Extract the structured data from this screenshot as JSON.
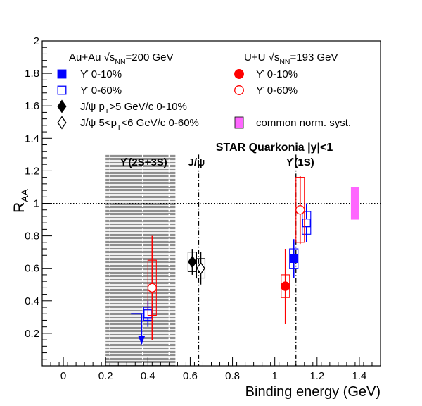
{
  "chart_data": {
    "type": "scatter",
    "title": "STAR Quarkonia |y|<1",
    "xlabel": "Binding energy (GeV)",
    "ylabel": "R",
    "ylabel_sub": "AA",
    "xlim": [
      -0.1,
      1.5
    ],
    "ylim": [
      0,
      2
    ],
    "x_ticks": [
      0,
      0.2,
      0.4,
      0.6,
      0.8,
      1,
      1.2,
      1.4
    ],
    "x_tick_labels": [
      "0",
      "0.2",
      "0.4",
      "0.6",
      "0.8",
      "1",
      "1.2",
      "1.4"
    ],
    "y_ticks": [
      0.2,
      0.4,
      0.6,
      0.8,
      1,
      1.2,
      1.4,
      1.6,
      1.8,
      2
    ],
    "y_tick_labels": [
      "0.2",
      "0.4",
      "0.6",
      "0.8",
      "1",
      "1.2",
      "1.4",
      "1.6",
      "1.8",
      "2"
    ],
    "reference_line_y": 1,
    "state_lines": [
      {
        "label": "J/ψ",
        "x": 0.64
      },
      {
        "label": "ϒ(1S)",
        "x": 1.1
      }
    ],
    "state_band": {
      "label": "ϒ(2S+3S)",
      "x_range": [
        0.2,
        0.53
      ],
      "color": "#7f7f7f"
    },
    "legend_headers": {
      "auau": {
        "prefix": "Au+Au  √s",
        "sub": "NN",
        "suffix": "=200 GeV"
      },
      "uu": {
        "prefix": "U+U  √s",
        "sub": "NN",
        "suffix": "=193 GeV"
      }
    },
    "legend_left": [
      {
        "label": "ϒ 0-10%",
        "color": "#0000ff",
        "marker": "square-filled"
      },
      {
        "label": "ϒ 0-60%",
        "color": "#0000ff",
        "marker": "square-open"
      },
      {
        "label_prefix": "J/ψ  p",
        "label_sub": "T",
        "label_suffix": ">5 GeV/c 0-10%",
        "color": "#000000",
        "marker": "diamond-filled"
      },
      {
        "label_prefix": "J/ψ  5<p",
        "label_sub": "T",
        "label_suffix": "<6 GeV/c 0-60%",
        "color": "#000000",
        "marker": "diamond-open"
      }
    ],
    "legend_right": [
      {
        "label": "ϒ 0-10%",
        "color": "#ff0000",
        "marker": "circle-filled"
      },
      {
        "label": "ϒ 0-60%",
        "color": "#ff0000",
        "marker": "circle-open"
      },
      {
        "label": "common norm. syst.",
        "color": "#ff66ff",
        "marker": "box"
      }
    ],
    "series": [
      {
        "name": "Au+Au ϒ 0-10%",
        "color": "#0000ff",
        "marker": "square-filled",
        "points": [
          {
            "x": 1.09,
            "y": 0.66,
            "stat": [
              0.12,
              0.12
            ],
            "syst": 0.06
          },
          {
            "x": 0.37,
            "y": 0.32,
            "xerr": 0.05,
            "upper_limit": 0.15
          }
        ]
      },
      {
        "name": "Au+Au ϒ 0-60%",
        "color": "#0000ff",
        "marker": "square-open",
        "points": [
          {
            "x": 1.15,
            "y": 0.88,
            "stat": [
              0.12,
              0.12
            ],
            "syst": 0.07
          },
          {
            "x": 0.4,
            "y": 0.32,
            "stat": [
              0.08,
              0.08
            ],
            "syst": 0.04
          }
        ]
      },
      {
        "name": "U+U ϒ 0-10%",
        "color": "#ff0000",
        "marker": "circle-filled",
        "points": [
          {
            "x": 1.05,
            "y": 0.49,
            "stat": [
              0.23,
              0.23
            ],
            "syst": 0.07
          }
        ]
      },
      {
        "name": "U+U ϒ 0-60%",
        "color": "#ff0000",
        "marker": "circle-open",
        "points": [
          {
            "x": 1.12,
            "y": 0.96,
            "stat": [
              0.21,
              0.21
            ],
            "syst": 0.2
          },
          {
            "x": 0.42,
            "y": 0.48,
            "stat": [
              0.32,
              0.32
            ],
            "syst": 0.17
          }
        ]
      },
      {
        "name": "Au+Au J/ψ pT>5 GeV/c 0-10%",
        "color": "#000000",
        "marker": "diamond-filled",
        "points": [
          {
            "x": 0.61,
            "y": 0.64,
            "stat": [
              0.08,
              0.08
            ],
            "syst": 0.06
          }
        ]
      },
      {
        "name": "Au+Au J/ψ 5<pT<6 GeV/c 0-60%",
        "color": "#000000",
        "marker": "diamond-open",
        "points": [
          {
            "x": 0.65,
            "y": 0.6,
            "stat": [
              0.1,
              0.1
            ],
            "syst": 0.06
          }
        ]
      }
    ],
    "common_norm_syst": {
      "x": 1.38,
      "y": 1,
      "syst": 0.1,
      "color": "#ff66ff"
    },
    "grid": false,
    "legend_position": "top"
  }
}
